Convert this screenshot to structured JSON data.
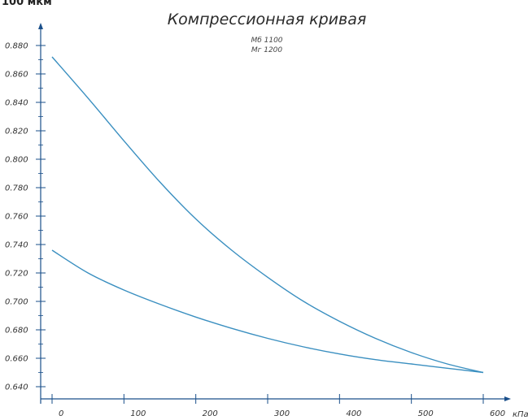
{
  "crop_text": "100 мкм",
  "chart_data": {
    "type": "line",
    "title": "Компрессионная кривая",
    "subtitle": [
      "Мб 1100",
      "Мг 1200"
    ],
    "xlabel": "кПа",
    "ylabel": "",
    "x_ticks": [
      "0",
      "100",
      "200",
      "300",
      "400",
      "500",
      "600"
    ],
    "y_ticks": [
      "0.640",
      "0.660",
      "0.680",
      "0.700",
      "0.720",
      "0.740",
      "0.760",
      "0.780",
      "0.800",
      "0.820",
      "0.840",
      "0.860",
      "0.880"
    ],
    "xlim": [
      0,
      600
    ],
    "ylim": [
      0.64,
      0.88
    ],
    "grid": false,
    "colors": {
      "curve": "#3a8fc0",
      "axis": "#1a4f8a"
    },
    "series": [
      {
        "x": [
          0,
          50,
          100,
          150,
          200,
          250,
          300,
          350,
          400,
          450,
          500,
          550,
          600
        ],
        "y": [
          0.872,
          0.843,
          0.813,
          0.784,
          0.758,
          0.736,
          0.717,
          0.7,
          0.686,
          0.674,
          0.664,
          0.656,
          0.65
        ]
      },
      {
        "x": [
          0,
          50,
          100,
          150,
          200,
          250,
          300,
          350,
          400,
          450,
          500,
          550,
          600
        ],
        "y": [
          0.736,
          0.72,
          0.708,
          0.698,
          0.689,
          0.681,
          0.674,
          0.668,
          0.663,
          0.659,
          0.656,
          0.653,
          0.65
        ]
      }
    ]
  }
}
